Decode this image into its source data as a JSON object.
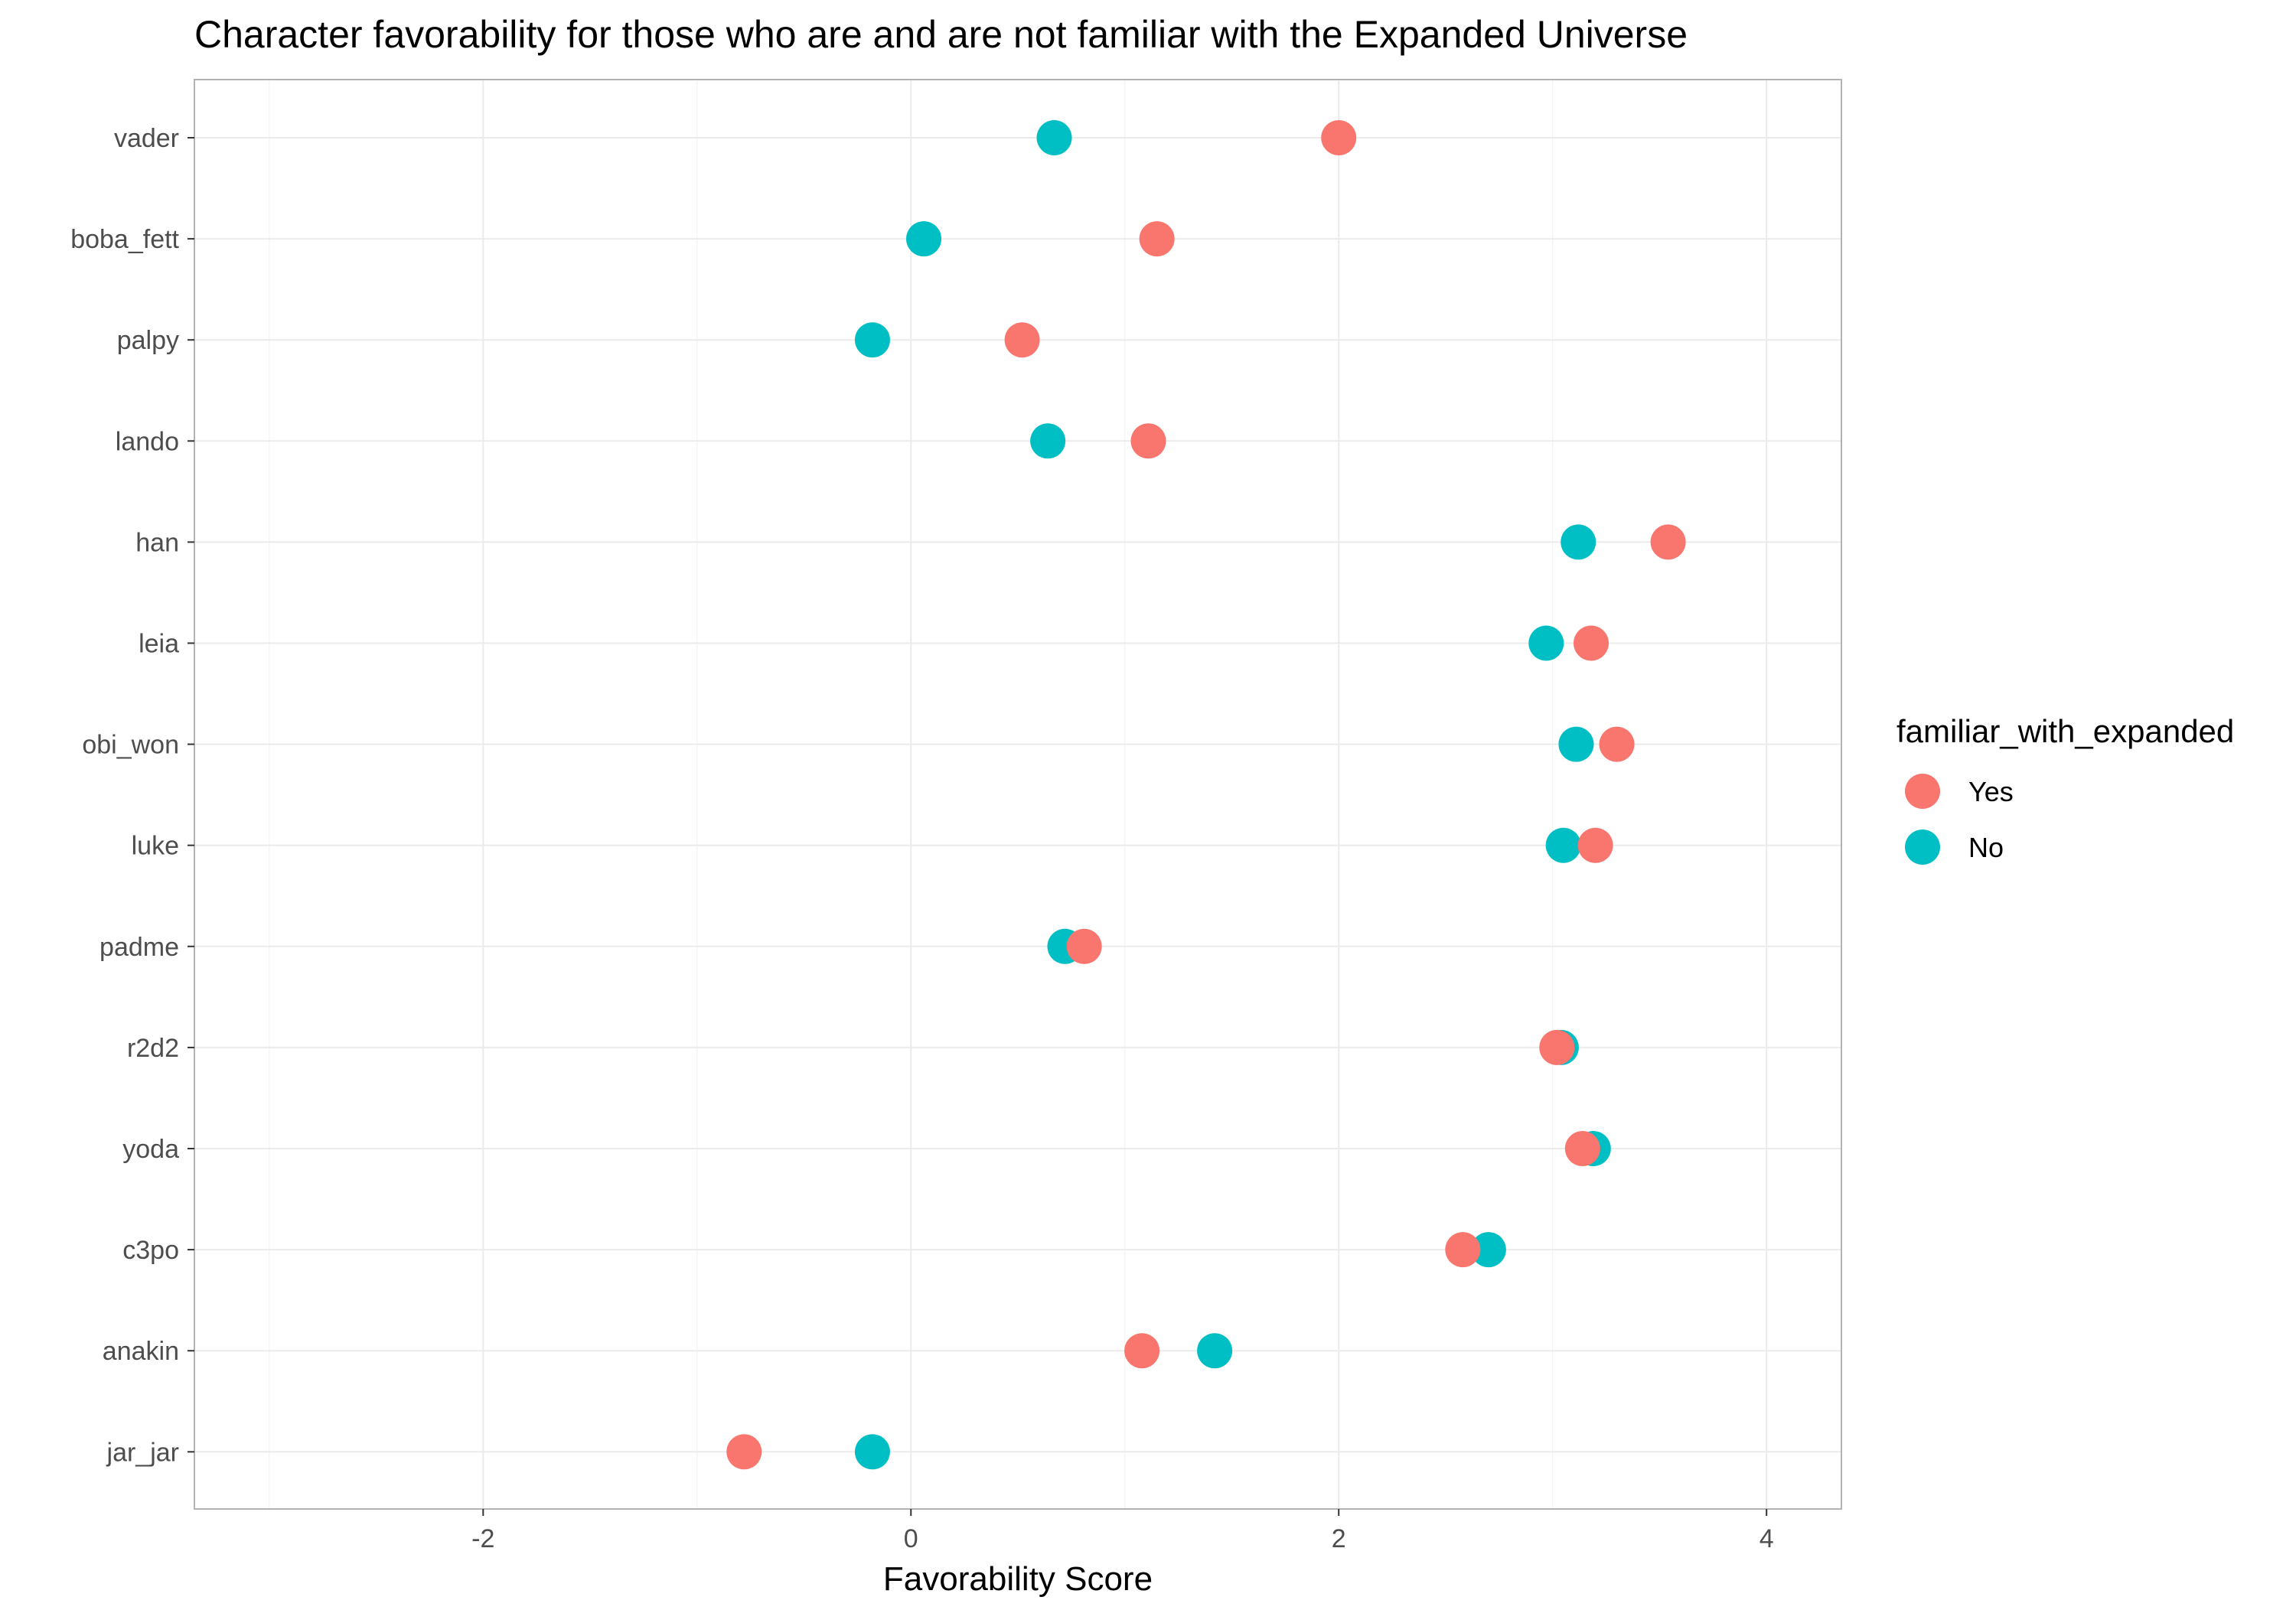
{
  "chart_data": {
    "type": "scatter",
    "title": "Character favorability for those who are and are not familiar with the Expanded Universe",
    "xlabel": "Favorability Score",
    "ylabel": "",
    "xlim": [
      -3.35,
      4.35
    ],
    "x_ticks": [
      -2,
      0,
      2,
      4
    ],
    "x_minor_ticks": [
      -3,
      -1,
      1,
      3
    ],
    "categories": [
      "vader",
      "boba_fett",
      "palpy",
      "lando",
      "han",
      "leia",
      "obi_won",
      "luke",
      "padme",
      "r2d2",
      "yoda",
      "c3po",
      "anakin",
      "jar_jar"
    ],
    "series": [
      {
        "name": "Yes",
        "color": "#F8766D",
        "values": [
          2.0,
          1.15,
          0.52,
          1.11,
          3.54,
          3.18,
          3.3,
          3.2,
          0.81,
          3.02,
          3.14,
          2.58,
          1.08,
          -0.78
        ]
      },
      {
        "name": "No",
        "color": "#00BFC4",
        "values": [
          0.67,
          0.06,
          -0.18,
          0.64,
          3.12,
          2.97,
          3.11,
          3.05,
          0.72,
          3.04,
          3.19,
          2.7,
          1.42,
          -0.18
        ]
      }
    ],
    "grid": true,
    "legend": {
      "title": "familiar_with_expanded",
      "position": "right"
    }
  }
}
